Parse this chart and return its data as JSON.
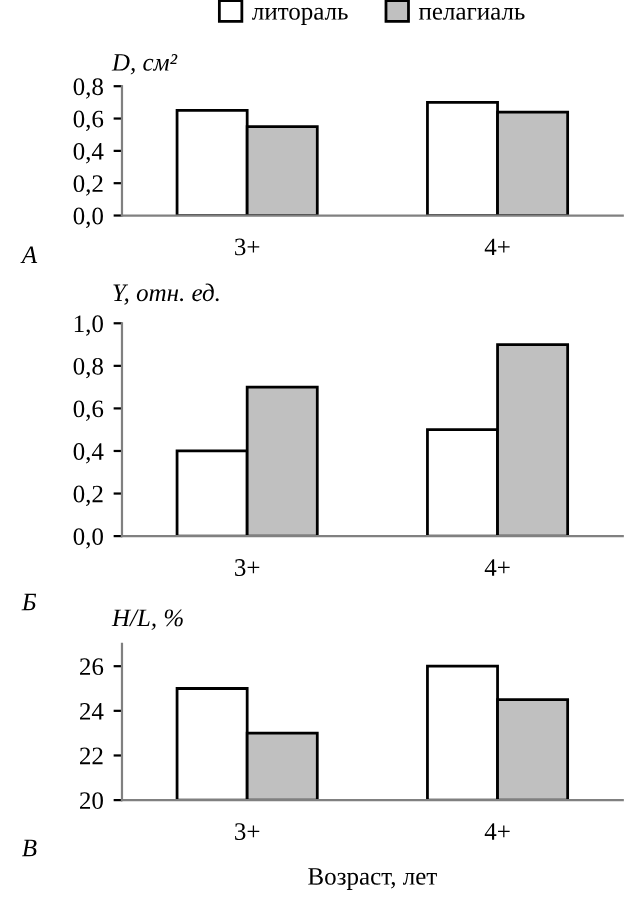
{
  "chart_data": [
    {
      "type": "bar",
      "ylabel": "D, см²",
      "categories": [
        "3+",
        "4+"
      ],
      "legend": "top",
      "annotations": [
        "А"
      ],
      "series": [
        {
          "name": "литораль",
          "color": "#ffffff",
          "values": [
            0.65,
            0.7
          ]
        },
        {
          "name": "пелагиаль",
          "color": "#c0c0c0",
          "values": [
            0.55,
            0.64
          ]
        }
      ],
      "ylim": [
        0,
        0.8
      ],
      "yticks": [
        {
          "value": 0,
          "label": "0,0"
        },
        {
          "value": 0.2,
          "label": "0,2"
        },
        {
          "value": 0.4,
          "label": "0,4"
        },
        {
          "value": 0.6,
          "label": "0,6"
        },
        {
          "value": 0.8,
          "label": "0,8"
        }
      ]
    },
    {
      "type": "bar",
      "ylabel": "Y, отн. ед.",
      "categories": [
        "3+",
        "4+"
      ],
      "annotations": [
        "Б"
      ],
      "series": [
        {
          "color": "#ffffff",
          "values": [
            0.4,
            0.5
          ]
        },
        {
          "color": "#c0c0c0",
          "values": [
            0.7,
            0.9
          ]
        }
      ],
      "ylim": [
        0,
        1.0
      ],
      "yticks": [
        {
          "value": 0,
          "label": "0,0"
        },
        {
          "value": 0.2,
          "label": "0,2"
        },
        {
          "value": 0.4,
          "label": "0,4"
        },
        {
          "value": 0.6,
          "label": "0,6"
        },
        {
          "value": 0.8,
          "label": "0,8"
        },
        {
          "value": 1.0,
          "label": "1,0"
        }
      ]
    },
    {
      "type": "bar",
      "ylabel": "H/L, %",
      "xlabel": "Возраст, лет",
      "categories": [
        "3+",
        "4+"
      ],
      "annotations": [
        "В"
      ],
      "series": [
        {
          "color": "#ffffff",
          "values": [
            25,
            26
          ]
        },
        {
          "color": "#c0c0c0",
          "values": [
            23,
            24.5
          ]
        }
      ],
      "ylim": [
        20,
        27
      ],
      "yticks": [
        20,
        22,
        24,
        26
      ]
    }
  ]
}
